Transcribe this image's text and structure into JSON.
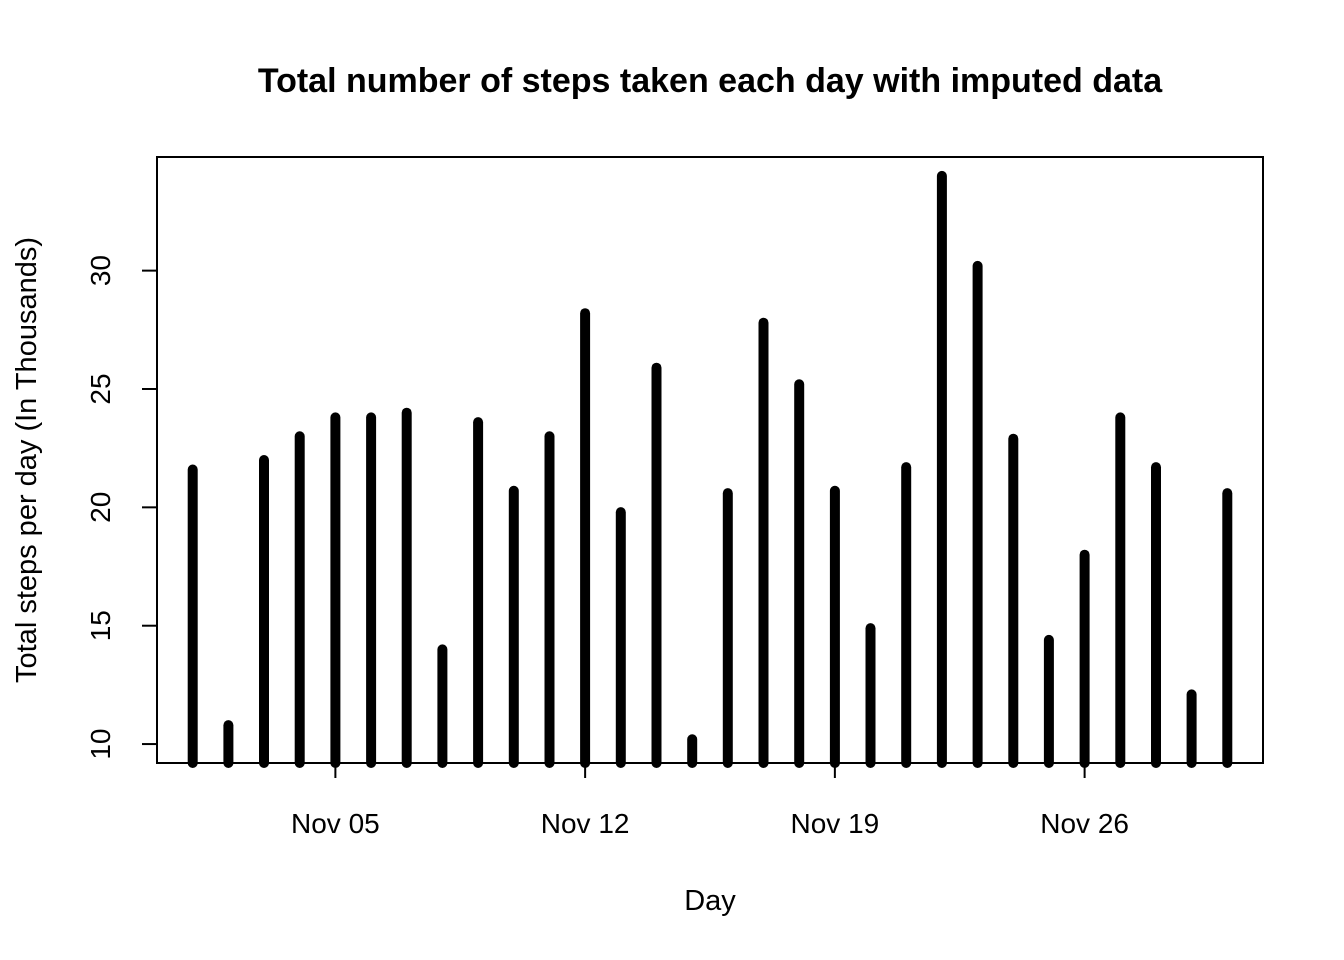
{
  "chart_data": {
    "type": "bar",
    "title": "Total number of steps taken each day with imputed data",
    "xlabel": "Day",
    "ylabel": "Total steps per day (In Thousands)",
    "x": [
      "2012-11-01",
      "2012-11-02",
      "2012-11-03",
      "2012-11-04",
      "2012-11-05",
      "2012-11-06",
      "2012-11-07",
      "2012-11-08",
      "2012-11-09",
      "2012-11-10",
      "2012-11-11",
      "2012-11-12",
      "2012-11-13",
      "2012-11-14",
      "2012-11-15",
      "2012-11-16",
      "2012-11-17",
      "2012-11-18",
      "2012-11-19",
      "2012-11-20",
      "2012-11-21",
      "2012-11-22",
      "2012-11-23",
      "2012-11-24",
      "2012-11-25",
      "2012-11-26",
      "2012-11-27",
      "2012-11-28",
      "2012-11-29",
      "2012-11-30"
    ],
    "values": [
      21.6,
      10.8,
      22.0,
      23.0,
      23.8,
      23.8,
      24.0,
      14.0,
      23.6,
      20.7,
      23.0,
      28.2,
      19.8,
      25.9,
      10.2,
      20.6,
      27.8,
      25.2,
      20.7,
      14.9,
      21.7,
      34.0,
      30.2,
      22.9,
      14.4,
      18.0,
      23.8,
      21.7,
      12.1,
      20.6
    ],
    "ylim": [
      9.2,
      34.8
    ],
    "xlim": [
      "2012-10-31",
      "2012-12-01"
    ],
    "x_ticks": [
      "Nov 05",
      "Nov 12",
      "Nov 19",
      "Nov 26"
    ],
    "x_tick_dates": [
      "2012-11-05",
      "2012-11-12",
      "2012-11-19",
      "2012-11-26"
    ],
    "y_ticks": [
      10,
      15,
      20,
      25,
      30
    ],
    "grid": false,
    "legend": "none",
    "bar_color": "#000000"
  }
}
